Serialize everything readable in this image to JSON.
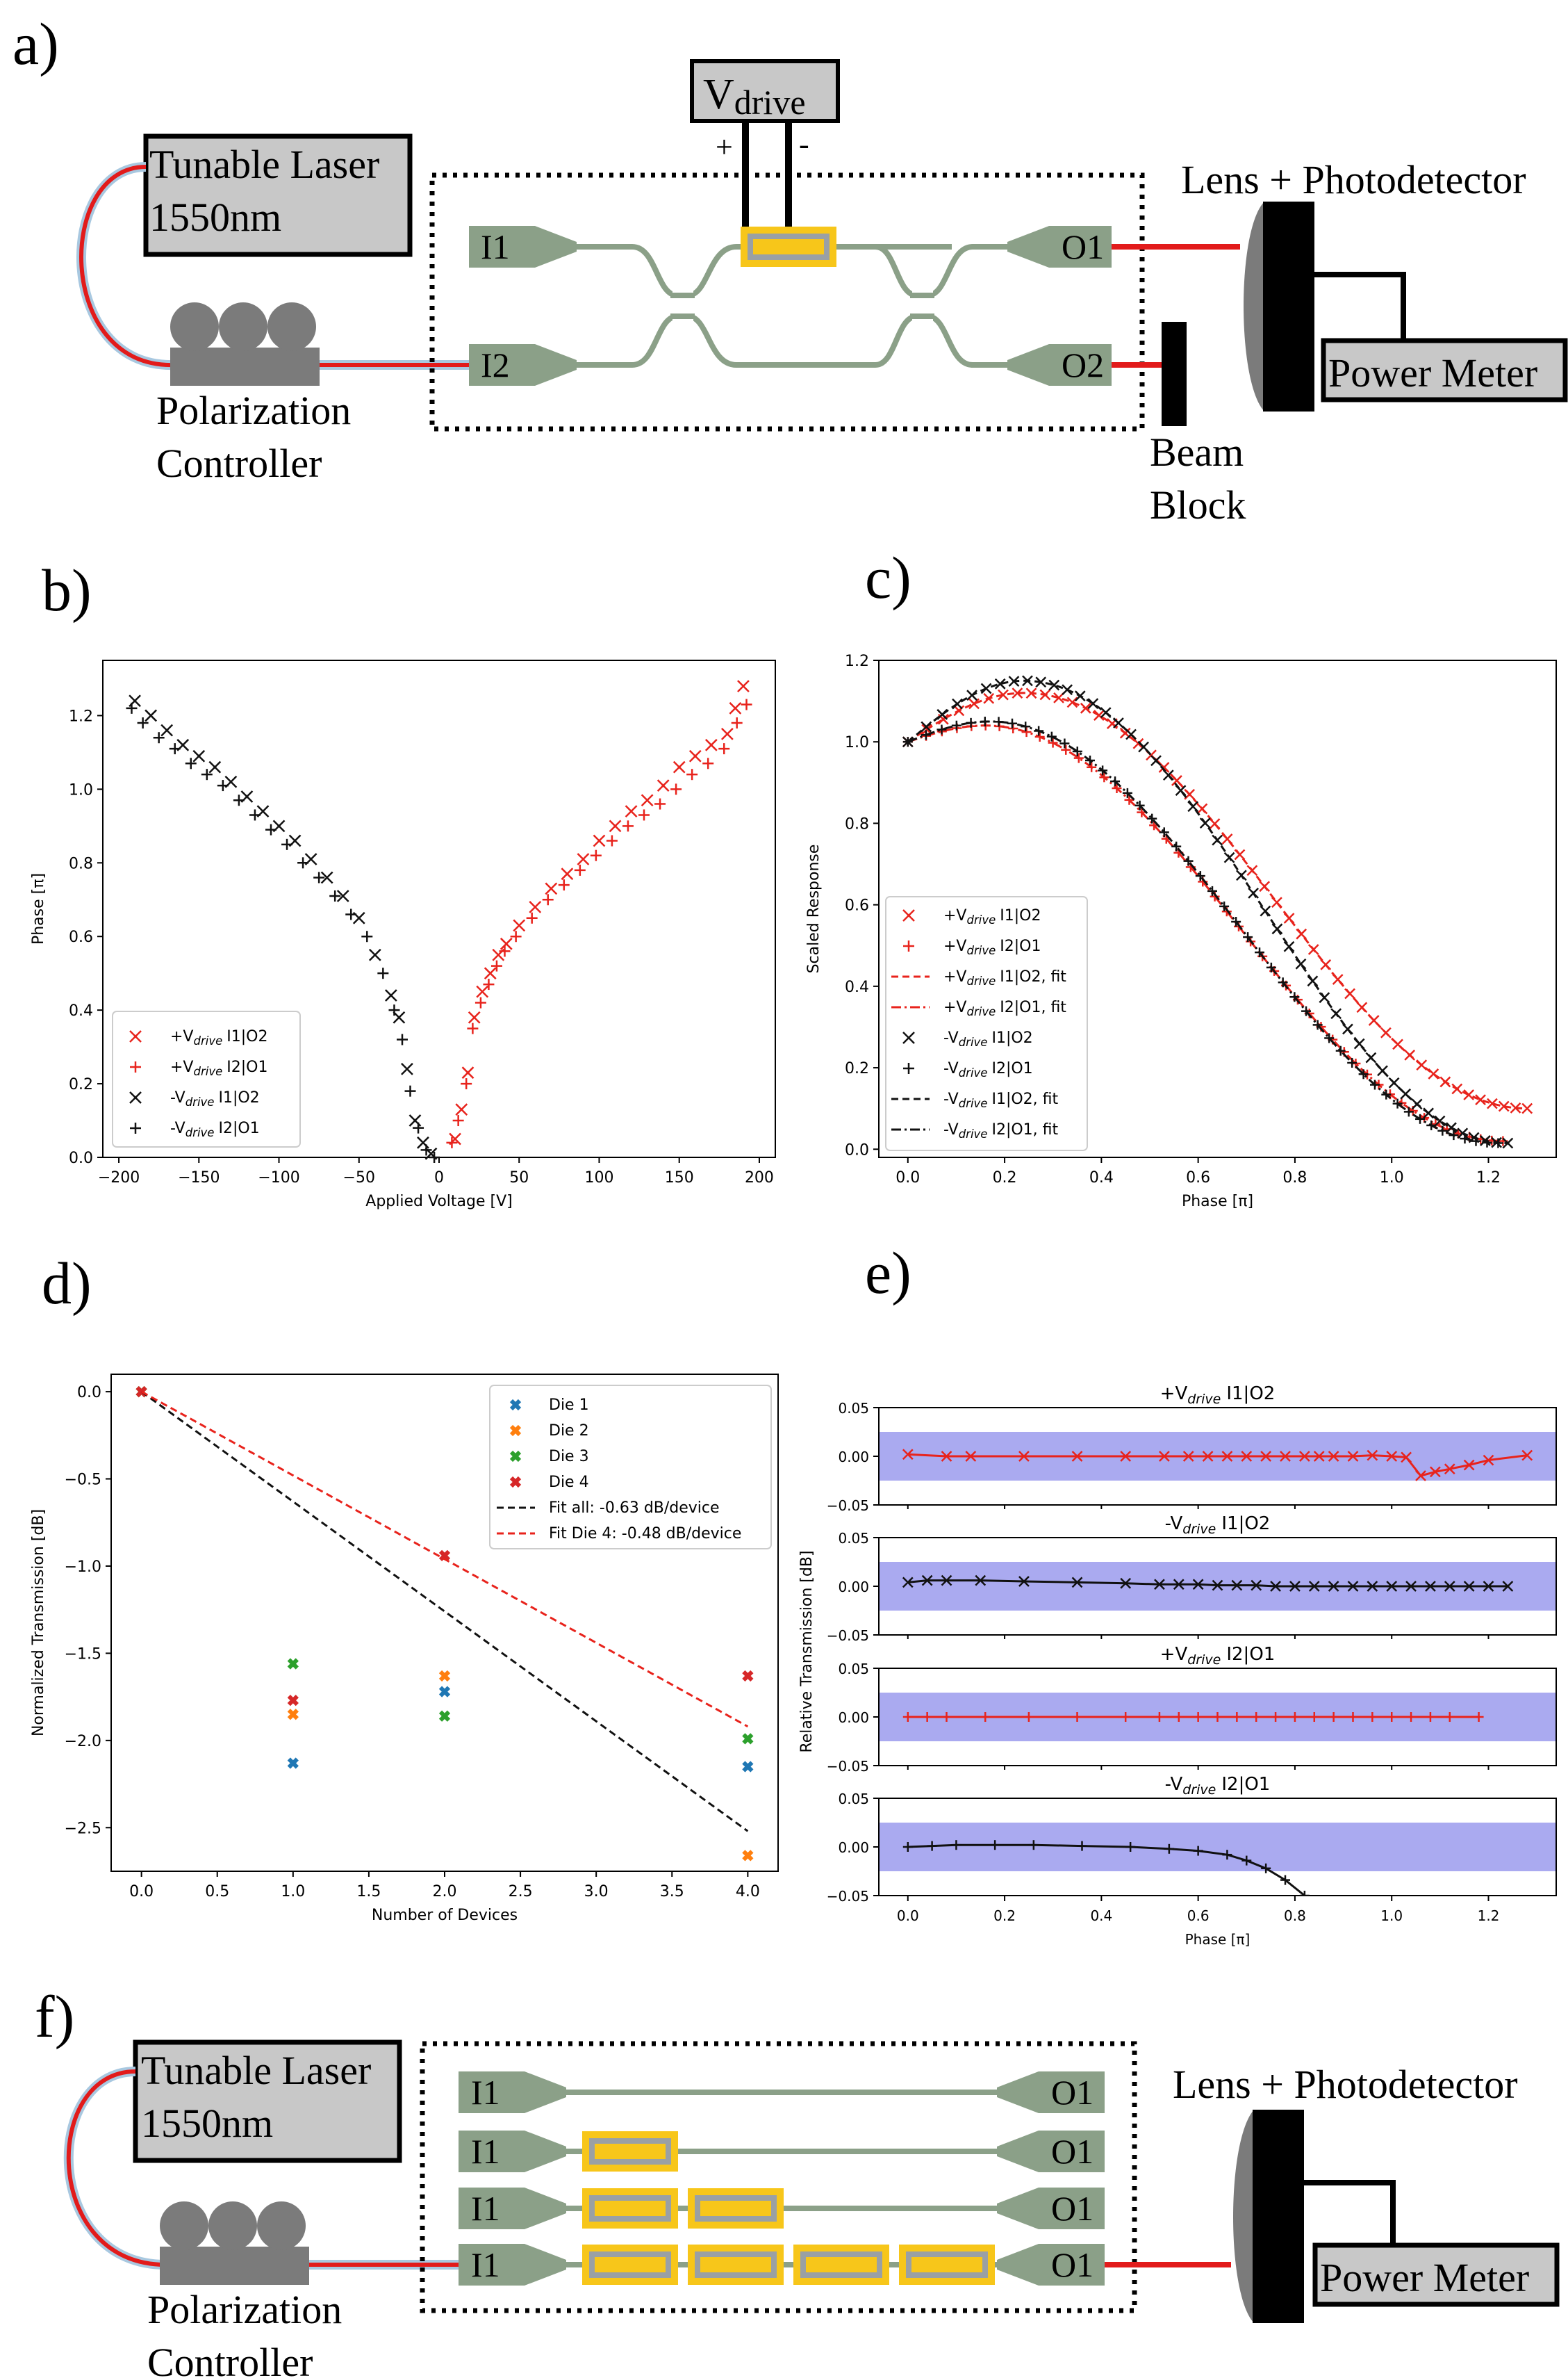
{
  "panels": {
    "a": {
      "label": "a)",
      "vdrive": "V",
      "vdrive_sub": "drive",
      "plus": "+",
      "minus": "-",
      "laser_line1": "Tunable Laser",
      "laser_line2": "1550nm",
      "pc_line1": "Polarization",
      "pc_line2": "Controller",
      "lens_pd": "Lens + Photodetector",
      "power_meter": "Power Meter",
      "beam_line1": "Beam",
      "beam_line2": "Block",
      "ports": [
        "I1",
        "I2",
        "O1",
        "O2"
      ]
    },
    "b": {
      "label": "b)"
    },
    "c": {
      "label": "c)"
    },
    "d": {
      "label": "d)"
    },
    "e": {
      "label": "e)"
    },
    "f": {
      "label": "f)",
      "laser_line1": "Tunable Laser",
      "laser_line2": "1550nm",
      "pc_line1": "Polarization",
      "pc_line2": "Controller",
      "lens_pd": "Lens + Photodetector",
      "power_meter": "Power Meter",
      "rows": [
        {
          "in": "I1",
          "out": "O1",
          "devices": 0
        },
        {
          "in": "I1",
          "out": "O1",
          "devices": 1
        },
        {
          "in": "I1",
          "out": "O1",
          "devices": 2
        },
        {
          "in": "I1",
          "out": "O1",
          "devices": 4
        }
      ]
    }
  },
  "legend_labels": {
    "p_i1o2": "+V",
    "p_i2o1": "+V",
    "m_i1o2": "-V",
    "m_i2o1": "-V",
    "sub": "drive",
    "s_i1o2": "I1|O2",
    "s_i2o1": "I2|O1",
    "s_i1o2_fit": "I1|O2, fit",
    "s_i2o1_fit": "I2|O1, fit"
  },
  "chart_data": [
    {
      "id": "b",
      "type": "scatter",
      "xlabel": "Applied Voltage [V]",
      "ylabel": "Phase [π]",
      "xlim": [
        -210,
        210
      ],
      "ylim": [
        0,
        1.35
      ],
      "xticks": [
        "−200",
        "−150",
        "−100",
        "−50",
        "0",
        "50",
        "100",
        "150",
        "200"
      ],
      "xtick_values": [
        -200,
        -150,
        -100,
        -50,
        0,
        50,
        100,
        150,
        200
      ],
      "yticks": [
        "0.0",
        "0.2",
        "0.4",
        "0.6",
        "0.8",
        "1.0",
        "1.2"
      ],
      "ytick_values": [
        0,
        0.2,
        0.4,
        0.6,
        0.8,
        1.0,
        1.2
      ],
      "series": [
        {
          "name": "+Vdrive I1|O2",
          "marker": "x",
          "color": "#e8231c",
          "x": [
            10,
            14,
            18,
            22,
            27,
            32,
            37,
            42,
            50,
            60,
            70,
            80,
            90,
            100,
            110,
            120,
            130,
            140,
            150,
            160,
            170,
            180,
            185,
            190
          ],
          "y": [
            0.05,
            0.13,
            0.23,
            0.38,
            0.45,
            0.5,
            0.55,
            0.58,
            0.63,
            0.68,
            0.73,
            0.77,
            0.81,
            0.86,
            0.9,
            0.94,
            0.97,
            1.01,
            1.06,
            1.09,
            1.12,
            1.15,
            1.22,
            1.28
          ]
        },
        {
          "name": "+Vdrive I2|O1",
          "marker": "+",
          "color": "#e8231c",
          "x": [
            8,
            12,
            17,
            21,
            26,
            31,
            36,
            41,
            48,
            58,
            68,
            78,
            88,
            98,
            108,
            118,
            128,
            138,
            148,
            158,
            168,
            178,
            186,
            192
          ],
          "y": [
            0.04,
            0.1,
            0.2,
            0.35,
            0.42,
            0.47,
            0.52,
            0.56,
            0.6,
            0.65,
            0.7,
            0.74,
            0.78,
            0.82,
            0.86,
            0.9,
            0.93,
            0.96,
            1.0,
            1.04,
            1.07,
            1.11,
            1.18,
            1.23
          ]
        },
        {
          "name": "-Vdrive I1|O2",
          "marker": "x",
          "color": "#111111",
          "x": [
            -5,
            -10,
            -15,
            -20,
            -25,
            -30,
            -40,
            -50,
            -60,
            -70,
            -80,
            -90,
            -100,
            -110,
            -120,
            -130,
            -140,
            -150,
            -160,
            -170,
            -180,
            -190
          ],
          "y": [
            0.01,
            0.04,
            0.1,
            0.24,
            0.38,
            0.44,
            0.55,
            0.65,
            0.71,
            0.76,
            0.81,
            0.86,
            0.9,
            0.94,
            0.98,
            1.02,
            1.06,
            1.09,
            1.12,
            1.16,
            1.2,
            1.24
          ]
        },
        {
          "name": "-Vdrive I2|O1",
          "marker": "+",
          "color": "#111111",
          "x": [
            -3,
            -8,
            -13,
            -18,
            -23,
            -28,
            -35,
            -45,
            -55,
            -65,
            -75,
            -85,
            -95,
            -105,
            -115,
            -125,
            -135,
            -145,
            -155,
            -165,
            -175,
            -185,
            -192
          ],
          "y": [
            0.0,
            0.02,
            0.08,
            0.18,
            0.32,
            0.4,
            0.5,
            0.6,
            0.66,
            0.71,
            0.76,
            0.8,
            0.85,
            0.89,
            0.93,
            0.97,
            1.01,
            1.04,
            1.07,
            1.11,
            1.14,
            1.18,
            1.22
          ]
        }
      ],
      "legend": "lower-left"
    },
    {
      "id": "c",
      "type": "line",
      "xlabel": "Phase [π]",
      "ylabel": "Scaled Response",
      "xlim": [
        -0.06,
        1.34
      ],
      "ylim": [
        -0.02,
        1.2
      ],
      "xticks": [
        "0.0",
        "0.2",
        "0.4",
        "0.6",
        "0.8",
        "1.0",
        "1.2"
      ],
      "xtick_values": [
        0,
        0.2,
        0.4,
        0.6,
        0.8,
        1.0,
        1.2
      ],
      "yticks": [
        "0.0",
        "0.2",
        "0.4",
        "0.6",
        "0.8",
        "1.0",
        "1.2"
      ],
      "ytick_values": [
        0,
        0.2,
        0.4,
        0.6,
        0.8,
        1.0,
        1.2
      ],
      "series": [
        {
          "name": "+Vdrive I1|O2",
          "marker": "x",
          "color": "#e8231c",
          "x_start": 0.0,
          "x_end": 1.28,
          "peak": 1.12,
          "peak_x": 0.24,
          "floor": 0.1
        },
        {
          "name": "+Vdrive I2|O1",
          "marker": "+",
          "color": "#e8231c",
          "x_start": 0.0,
          "x_end": 1.23,
          "peak": 1.04,
          "peak_x": 0.16,
          "floor": 0.02
        },
        {
          "name": "+Vdrive I1|O2, fit",
          "line": "dashed",
          "color": "#e8231c",
          "x_start": 0.0,
          "x_end": 1.28,
          "peak": 1.12,
          "peak_x": 0.24,
          "floor": 0.1
        },
        {
          "name": "+Vdrive I2|O1, fit",
          "line": "dashdot",
          "color": "#e8231c",
          "x_start": 0.0,
          "x_end": 1.23,
          "peak": 1.04,
          "peak_x": 0.16,
          "floor": 0.02
        },
        {
          "name": "-Vdrive I1|O2",
          "marker": "x",
          "color": "#111111",
          "x_start": 0.0,
          "x_end": 1.24,
          "peak": 1.15,
          "peak_x": 0.24,
          "floor": 0.015
        },
        {
          "name": "-Vdrive I2|O1",
          "marker": "+",
          "color": "#111111",
          "x_start": 0.0,
          "x_end": 1.22,
          "peak": 1.05,
          "peak_x": 0.17,
          "floor": 0.015
        },
        {
          "name": "-Vdrive I1|O2, fit",
          "line": "dashed",
          "color": "#111111",
          "x_start": 0.0,
          "x_end": 1.24,
          "peak": 1.15,
          "peak_x": 0.24,
          "floor": 0.015
        },
        {
          "name": "-Vdrive I2|O1, fit",
          "line": "dashdot",
          "color": "#111111",
          "x_start": 0.0,
          "x_end": 1.22,
          "peak": 1.05,
          "peak_x": 0.17,
          "floor": 0.015
        }
      ],
      "legend": "lower-left"
    },
    {
      "id": "d",
      "type": "scatter",
      "xlabel": "Number of Devices",
      "ylabel": "Normalized Transmission [dB]",
      "xlim": [
        -0.2,
        4.2
      ],
      "ylim": [
        -2.75,
        0.1
      ],
      "xticks": [
        "0.0",
        "0.5",
        "1.0",
        "1.5",
        "2.0",
        "2.5",
        "3.0",
        "3.5",
        "4.0"
      ],
      "xtick_values": [
        0,
        0.5,
        1.0,
        1.5,
        2.0,
        2.5,
        3.0,
        3.5,
        4.0
      ],
      "yticks": [
        "0.0",
        "−0.5",
        "−1.0",
        "−1.5",
        "−2.0",
        "−2.5"
      ],
      "ytick_values": [
        0,
        -0.5,
        -1.0,
        -1.5,
        -2.0,
        -2.5
      ],
      "series": [
        {
          "name": "Die 1",
          "color": "#1f77b4",
          "x": [
            0,
            1,
            2,
            4
          ],
          "y": [
            0,
            -2.13,
            -1.72,
            -2.15
          ]
        },
        {
          "name": "Die 2",
          "color": "#ff7f0e",
          "x": [
            0,
            1,
            2,
            4
          ],
          "y": [
            0,
            -1.85,
            -1.63,
            -2.66
          ]
        },
        {
          "name": "Die 3",
          "color": "#2ca02c",
          "x": [
            0,
            1,
            2,
            4
          ],
          "y": [
            0,
            -1.56,
            -1.86,
            -1.99
          ]
        },
        {
          "name": "Die 4",
          "color": "#d62728",
          "x": [
            0,
            1,
            2,
            4
          ],
          "y": [
            0,
            -1.77,
            -0.94,
            -1.63
          ]
        },
        {
          "name": "Fit all: -0.63 dB/device",
          "line": "dashed",
          "color": "#111111",
          "x": [
            0,
            4
          ],
          "y": [
            0,
            -2.52
          ]
        },
        {
          "name": "Fit Die 4: -0.48 dB/device",
          "line": "dashed",
          "color": "#e8231c",
          "x": [
            0,
            4
          ],
          "y": [
            0,
            -1.92
          ]
        }
      ],
      "legend": "top-right"
    },
    {
      "id": "e",
      "type": "line",
      "xlabel": "Phase [π]",
      "ylabel": "Relative Transmission [dB]",
      "xlim": [
        -0.06,
        1.34
      ],
      "ylim": [
        -0.05,
        0.05
      ],
      "xticks": [
        "0.0",
        "0.2",
        "0.4",
        "0.6",
        "0.8",
        "1.0",
        "1.2"
      ],
      "xtick_values": [
        0,
        0.2,
        0.4,
        0.6,
        0.8,
        1.0,
        1.2
      ],
      "yticks": [
        "0.05",
        "0.00",
        "−0.05"
      ],
      "ytick_values": [
        0.05,
        0,
        -0.05
      ],
      "band": [
        -0.025,
        0.025
      ],
      "subplots": [
        {
          "title_prefix": "+V",
          "title_suffix": "I1|O2",
          "color": "#e8231c",
          "marker": "x",
          "x_end": 1.28,
          "x": [
            0,
            0.08,
            0.13,
            0.24,
            0.35,
            0.45,
            0.53,
            0.58,
            0.62,
            0.66,
            0.7,
            0.74,
            0.78,
            0.82,
            0.85,
            0.88,
            0.92,
            0.96,
            1.0,
            1.03,
            1.06,
            1.09,
            1.12,
            1.16,
            1.2,
            1.28
          ],
          "y": [
            0.002,
            0.0,
            0.0,
            0.0,
            0.0,
            0.0,
            0.0,
            0.0,
            0.0,
            0.0,
            0.0,
            0.0,
            0.0,
            0.0,
            0.0,
            0.0,
            0.0,
            0.001,
            0.0,
            -0.001,
            -0.02,
            -0.016,
            -0.013,
            -0.009,
            -0.004,
            0.001
          ]
        },
        {
          "title_prefix": "-V",
          "title_suffix": "I1|O2",
          "color": "#111111",
          "marker": "x",
          "x_end": 1.24,
          "x": [
            0,
            0.04,
            0.08,
            0.15,
            0.24,
            0.35,
            0.45,
            0.52,
            0.56,
            0.6,
            0.64,
            0.68,
            0.72,
            0.76,
            0.8,
            0.84,
            0.88,
            0.92,
            0.96,
            1.0,
            1.04,
            1.08,
            1.12,
            1.16,
            1.2,
            1.24
          ],
          "y": [
            0.004,
            0.006,
            0.006,
            0.006,
            0.005,
            0.004,
            0.003,
            0.002,
            0.002,
            0.002,
            0.001,
            0.001,
            0.001,
            0.0,
            0.0,
            0.0,
            0.0,
            0.0,
            0.0,
            0.0,
            0.0,
            0.0,
            0.0,
            0.0,
            0.0,
            0.0
          ]
        },
        {
          "title_prefix": "+V",
          "title_suffix": "I2|O1",
          "color": "#e8231c",
          "marker": "+",
          "x_end": 1.18,
          "x": [
            0,
            0.04,
            0.08,
            0.16,
            0.25,
            0.35,
            0.45,
            0.52,
            0.56,
            0.6,
            0.64,
            0.68,
            0.72,
            0.76,
            0.8,
            0.84,
            0.88,
            0.92,
            0.96,
            1.0,
            1.04,
            1.08,
            1.12,
            1.18
          ],
          "y": [
            0,
            0,
            0,
            0,
            0,
            0,
            0,
            0,
            0,
            0,
            0,
            0,
            0,
            0,
            0,
            0,
            0,
            0,
            0,
            0,
            0,
            0,
            0,
            0
          ]
        },
        {
          "title_prefix": "-V",
          "title_suffix": "I2|O1",
          "color": "#111111",
          "marker": "+",
          "x_end": 0.82,
          "x": [
            0,
            0.05,
            0.1,
            0.18,
            0.26,
            0.36,
            0.46,
            0.54,
            0.6,
            0.66,
            0.7,
            0.74,
            0.78,
            0.82
          ],
          "y": [
            0.0,
            0.001,
            0.002,
            0.002,
            0.002,
            0.001,
            0.0,
            -0.002,
            -0.004,
            -0.008,
            -0.014,
            -0.022,
            -0.034,
            -0.05
          ]
        }
      ]
    }
  ]
}
